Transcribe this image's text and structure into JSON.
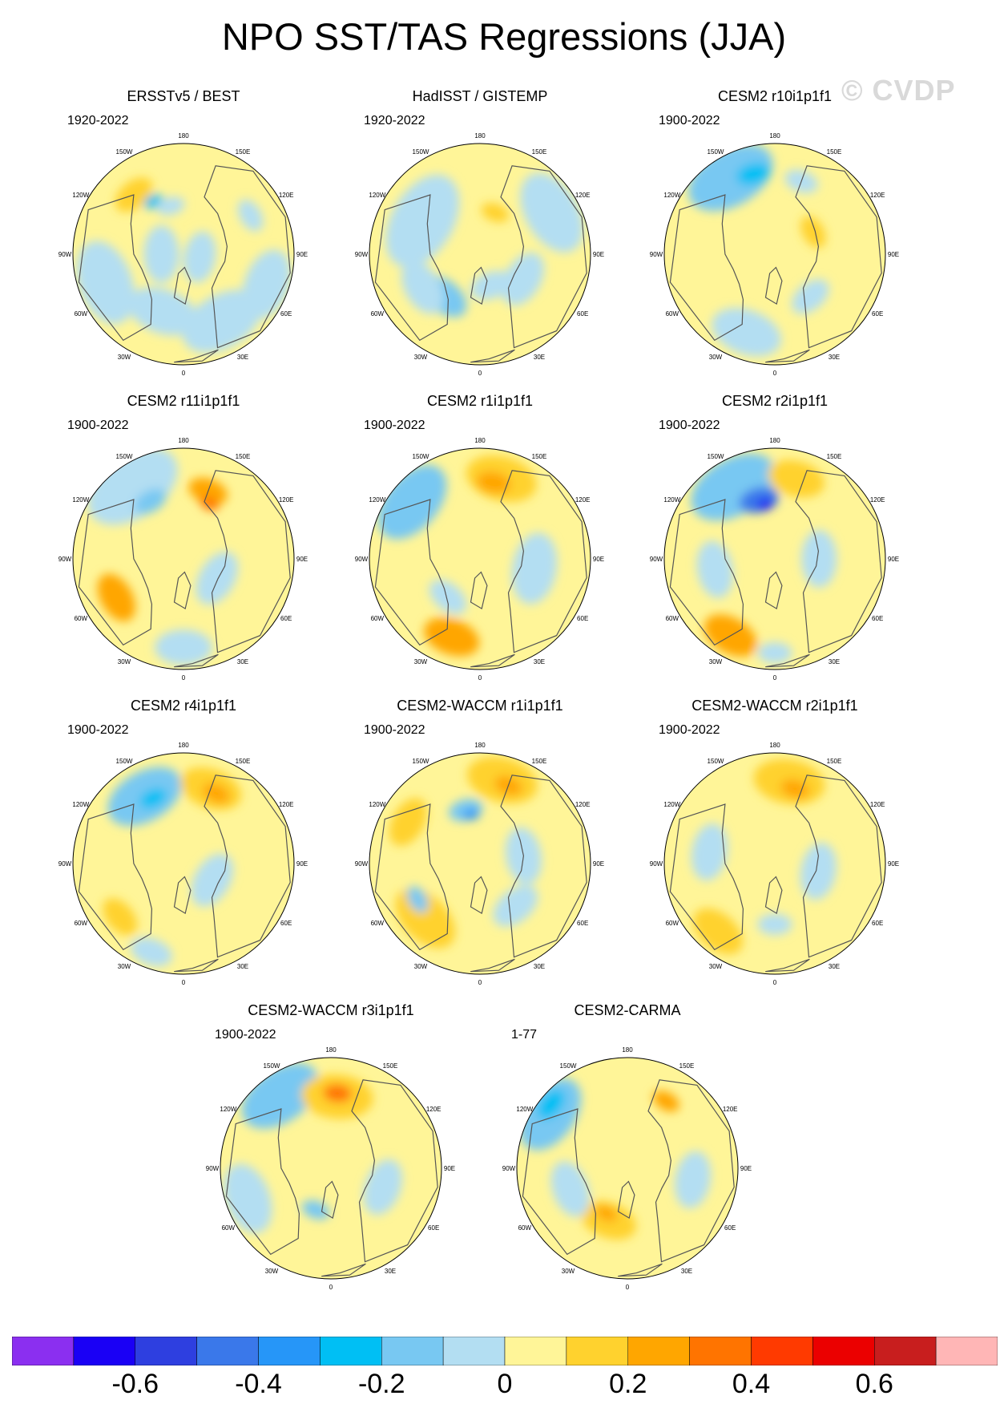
{
  "title": "NPO SST/TAS Regressions (JJA)",
  "watermark": "© CVDP",
  "lon_labels": [
    "180",
    "150E",
    "120E",
    "90E",
    "60E",
    "30E",
    "0",
    "30W",
    "60W",
    "90W",
    "120W",
    "150W"
  ],
  "colors": {
    "land_line": "#555555",
    "ocean_edge": "#ffffff"
  },
  "chart_data": {
    "type": "heatmap",
    "projection": "north-polar-stereographic",
    "panels": [
      {
        "title": "ERSSTv5 / BEST",
        "period": "1920-2022",
        "pattern": "obs1"
      },
      {
        "title": "HadISST / GISTEMP",
        "period": "1920-2022",
        "pattern": "obs2"
      },
      {
        "title": "CESM2 r10i1p1f1",
        "period": "1900-2022",
        "pattern": "m1"
      },
      {
        "title": "CESM2 r11i1p1f1",
        "period": "1900-2022",
        "pattern": "m2"
      },
      {
        "title": "CESM2 r1i1p1f1",
        "period": "1900-2022",
        "pattern": "m3"
      },
      {
        "title": "CESM2 r2i1p1f1",
        "period": "1900-2022",
        "pattern": "m4"
      },
      {
        "title": "CESM2 r4i1p1f1",
        "period": "1900-2022",
        "pattern": "m5"
      },
      {
        "title": "CESM2-WACCM r1i1p1f1",
        "period": "1900-2022",
        "pattern": "m6"
      },
      {
        "title": "CESM2-WACCM r2i1p1f1",
        "period": "1900-2022",
        "pattern": "m7"
      },
      {
        "title": "CESM2-WACCM r3i1p1f1",
        "period": "1900-2022",
        "pattern": "m8"
      },
      {
        "title": "CESM2-CARMA",
        "period": "1-77",
        "pattern": "m9"
      }
    ],
    "colorbar": {
      "colors": [
        "#8b2ff0",
        "#1a00f5",
        "#2e3fe0",
        "#3a78ea",
        "#2696f8",
        "#00bff4",
        "#78c8f2",
        "#b3def2",
        "#fff598",
        "#ffd22e",
        "#ffa600",
        "#ff7400",
        "#ff3a00",
        "#eb0000",
        "#c81e1e",
        "#ffb6b6"
      ],
      "tick_values": [
        -0.6,
        -0.4,
        -0.2,
        0,
        0.2,
        0.4,
        0.6
      ],
      "tick_labels": [
        "-0.6",
        "-0.4",
        "-0.2",
        "0",
        "0.2",
        "0.4",
        "0.6"
      ]
    }
  }
}
